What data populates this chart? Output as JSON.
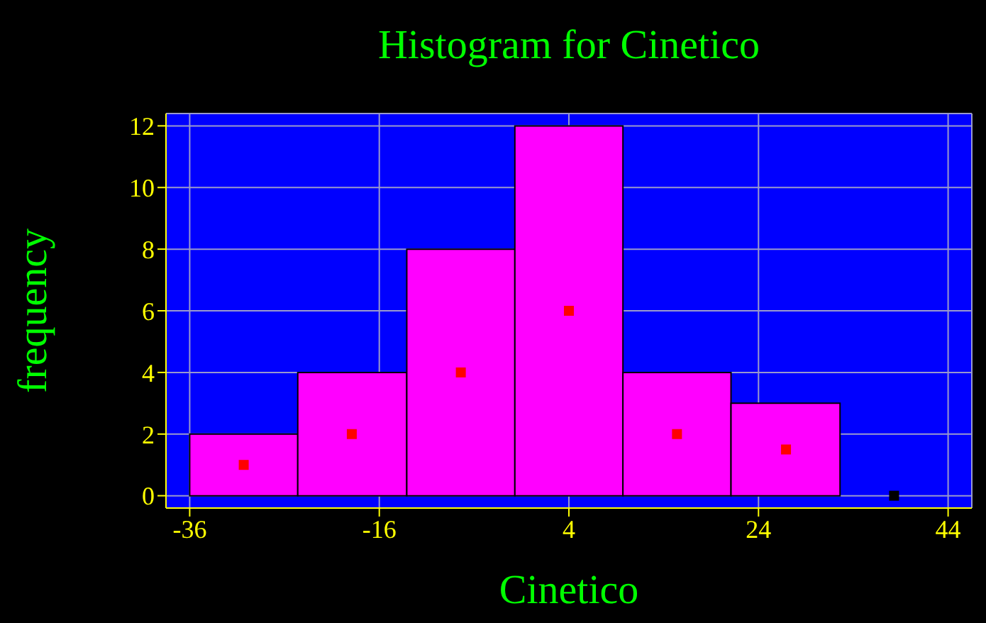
{
  "chart_data": {
    "type": "histogram",
    "title": "Histogram for Cinetico",
    "xlabel": "Cinetico",
    "ylabel": "frequency",
    "series": [
      {
        "bins": [
          -36,
          -24.6,
          -13.1,
          -1.7,
          9.7,
          21.1,
          32.6
        ],
        "values": [
          2,
          4,
          8,
          12,
          4,
          3
        ],
        "color": "#ff00ff"
      },
      {
        "type": "scatter",
        "x": [
          -30.3,
          -18.9,
          -7.4,
          4,
          15.4,
          26.9,
          38.3
        ],
        "values": [
          1,
          2,
          4,
          6,
          2,
          1.5,
          0
        ],
        "colors": [
          "#ff0000",
          "#ff0000",
          "#ff0000",
          "#ff0000",
          "#ff0000",
          "#ff0000",
          "#000000"
        ]
      }
    ],
    "xlim": [
      -38.5,
      46.5
    ],
    "xticks": [
      -36,
      -16,
      4,
      24,
      44
    ],
    "ylim": [
      -0.4,
      12.4
    ],
    "yticks": [
      0,
      2,
      4,
      6,
      8,
      10,
      12
    ],
    "grid": true,
    "marker": "square"
  }
}
